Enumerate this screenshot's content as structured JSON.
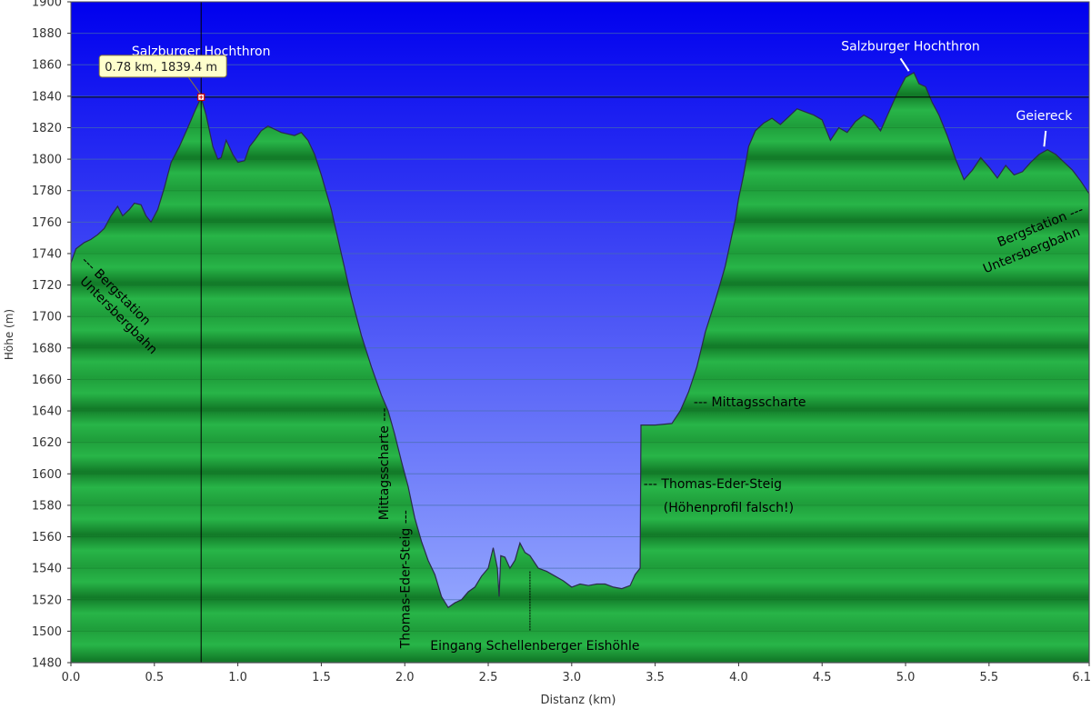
{
  "chart_data": {
    "type": "area",
    "xlabel": "Distanz  (km)",
    "ylabel": "Höhe (m)",
    "xlim": [
      0,
      6.1
    ],
    "ylim": [
      1480,
      1900
    ],
    "xticks": [
      0.0,
      0.5,
      1.0,
      1.5,
      2.0,
      2.5,
      3.0,
      3.5,
      4.0,
      4.5,
      5.0,
      5.5,
      6.1
    ],
    "xtick_labels": [
      "0.0",
      "0.5",
      "1.0",
      "1.5",
      "2.0",
      "2.5",
      "3.0",
      "3.5",
      "4.0",
      "4.5",
      "5.0",
      "5.5",
      "6.1"
    ],
    "yticks": [
      1480,
      1500,
      1520,
      1540,
      1560,
      1580,
      1600,
      1620,
      1640,
      1660,
      1680,
      1700,
      1720,
      1740,
      1760,
      1780,
      1800,
      1820,
      1840,
      1860,
      1880,
      1900
    ],
    "grid": true,
    "colors": {
      "sky_top": "#0000ee",
      "sky_bottom": "#a0b4ff",
      "terrain_light": "#22b14c",
      "terrain_dark": "#0f6b1f",
      "outline": "#2a2a4a",
      "tooltip_bg": "#ffffcc"
    },
    "profile": [
      [
        0.0,
        1734
      ],
      [
        0.03,
        1743
      ],
      [
        0.08,
        1747
      ],
      [
        0.12,
        1749
      ],
      [
        0.16,
        1752
      ],
      [
        0.2,
        1756
      ],
      [
        0.24,
        1764
      ],
      [
        0.28,
        1770
      ],
      [
        0.31,
        1764
      ],
      [
        0.35,
        1768
      ],
      [
        0.38,
        1772
      ],
      [
        0.42,
        1771
      ],
      [
        0.45,
        1764
      ],
      [
        0.48,
        1760
      ],
      [
        0.52,
        1768
      ],
      [
        0.56,
        1782
      ],
      [
        0.6,
        1798
      ],
      [
        0.65,
        1808
      ],
      [
        0.7,
        1820
      ],
      [
        0.74,
        1830
      ],
      [
        0.78,
        1839.4
      ],
      [
        0.81,
        1828
      ],
      [
        0.85,
        1808
      ],
      [
        0.88,
        1800
      ],
      [
        0.9,
        1801
      ],
      [
        0.93,
        1812
      ],
      [
        0.97,
        1803
      ],
      [
        1.0,
        1798
      ],
      [
        1.04,
        1799
      ],
      [
        1.07,
        1808
      ],
      [
        1.1,
        1812
      ],
      [
        1.14,
        1818
      ],
      [
        1.18,
        1821
      ],
      [
        1.22,
        1819
      ],
      [
        1.26,
        1817
      ],
      [
        1.3,
        1816
      ],
      [
        1.34,
        1815
      ],
      [
        1.38,
        1817
      ],
      [
        1.42,
        1812
      ],
      [
        1.46,
        1803
      ],
      [
        1.5,
        1790
      ],
      [
        1.56,
        1768
      ],
      [
        1.62,
        1740
      ],
      [
        1.68,
        1712
      ],
      [
        1.74,
        1688
      ],
      [
        1.8,
        1668
      ],
      [
        1.86,
        1650
      ],
      [
        1.9,
        1640
      ],
      [
        1.94,
        1625
      ],
      [
        1.98,
        1608
      ],
      [
        2.02,
        1592
      ],
      [
        2.06,
        1572
      ],
      [
        2.1,
        1557
      ],
      [
        2.14,
        1545
      ],
      [
        2.18,
        1536
      ],
      [
        2.22,
        1522
      ],
      [
        2.26,
        1515
      ],
      [
        2.3,
        1518
      ],
      [
        2.34,
        1520
      ],
      [
        2.38,
        1525
      ],
      [
        2.42,
        1528
      ],
      [
        2.46,
        1535
      ],
      [
        2.5,
        1540
      ],
      [
        2.53,
        1553
      ],
      [
        2.555,
        1540
      ],
      [
        2.565,
        1522
      ],
      [
        2.575,
        1548
      ],
      [
        2.6,
        1547
      ],
      [
        2.63,
        1540
      ],
      [
        2.66,
        1545
      ],
      [
        2.69,
        1556
      ],
      [
        2.72,
        1550
      ],
      [
        2.75,
        1548
      ],
      [
        2.8,
        1540
      ],
      [
        2.85,
        1538
      ],
      [
        2.9,
        1535
      ],
      [
        2.95,
        1532
      ],
      [
        3.0,
        1528
      ],
      [
        3.05,
        1530
      ],
      [
        3.1,
        1529
      ],
      [
        3.15,
        1530
      ],
      [
        3.2,
        1530
      ],
      [
        3.25,
        1528
      ],
      [
        3.3,
        1527
      ],
      [
        3.35,
        1529
      ],
      [
        3.38,
        1536
      ],
      [
        3.41,
        1540
      ],
      [
        3.415,
        1631
      ],
      [
        3.5,
        1631
      ],
      [
        3.6,
        1632
      ],
      [
        3.65,
        1640
      ],
      [
        3.7,
        1652
      ],
      [
        3.75,
        1668
      ],
      [
        3.8,
        1690
      ],
      [
        3.86,
        1710
      ],
      [
        3.92,
        1732
      ],
      [
        3.98,
        1762
      ],
      [
        4.0,
        1775
      ],
      [
        4.03,
        1790
      ],
      [
        4.06,
        1808
      ],
      [
        4.1,
        1818
      ],
      [
        4.15,
        1823
      ],
      [
        4.2,
        1826
      ],
      [
        4.25,
        1822
      ],
      [
        4.3,
        1827
      ],
      [
        4.35,
        1832
      ],
      [
        4.4,
        1830
      ],
      [
        4.45,
        1828
      ],
      [
        4.5,
        1825
      ],
      [
        4.55,
        1812
      ],
      [
        4.6,
        1820
      ],
      [
        4.65,
        1817
      ],
      [
        4.7,
        1824
      ],
      [
        4.75,
        1828
      ],
      [
        4.8,
        1825
      ],
      [
        4.85,
        1818
      ],
      [
        4.9,
        1830
      ],
      [
        4.95,
        1842
      ],
      [
        5.0,
        1852
      ],
      [
        5.05,
        1855
      ],
      [
        5.08,
        1848
      ],
      [
        5.12,
        1846
      ],
      [
        5.16,
        1836
      ],
      [
        5.2,
        1828
      ],
      [
        5.25,
        1815
      ],
      [
        5.3,
        1800
      ],
      [
        5.35,
        1787
      ],
      [
        5.4,
        1793
      ],
      [
        5.45,
        1801
      ],
      [
        5.5,
        1795
      ],
      [
        5.55,
        1788
      ],
      [
        5.6,
        1796
      ],
      [
        5.65,
        1790
      ],
      [
        5.7,
        1792
      ],
      [
        5.75,
        1798
      ],
      [
        5.8,
        1803
      ],
      [
        5.85,
        1806
      ],
      [
        5.9,
        1803
      ],
      [
        5.95,
        1798
      ],
      [
        6.0,
        1793
      ],
      [
        6.05,
        1786
      ],
      [
        6.1,
        1778
      ]
    ],
    "marker": {
      "x": 0.78,
      "y": 1839.4,
      "label": "0.78 km, 1839.4 m"
    },
    "annotations": [
      {
        "text": "Salzburger Hochthron",
        "x": 0.78,
        "y": 1866,
        "color": "#ffffff",
        "rotate": 0
      },
      {
        "text": "Salzburger Hochthron",
        "x": 5.03,
        "y": 1869,
        "color": "#ffffff",
        "rotate": 0,
        "leader": [
          [
            4.97,
            1864
          ],
          [
            5.02,
            1856
          ]
        ]
      },
      {
        "text": "Geiereck",
        "x": 5.83,
        "y": 1825,
        "color": "#ffffff",
        "rotate": 0,
        "leader": [
          [
            5.84,
            1818
          ],
          [
            5.83,
            1808
          ]
        ]
      },
      {
        "text": "--- Bergstation",
        "x": 0.06,
        "y": 1735,
        "color": "#000000",
        "rotate": 45,
        "anchor": "start"
      },
      {
        "text": "Untersbergbahn",
        "x": 0.05,
        "y": 1722,
        "color": "#000000",
        "rotate": 45,
        "anchor": "start"
      },
      {
        "text": "Bergstation ---",
        "x": 6.07,
        "y": 1766,
        "color": "#000000",
        "rotate": -22,
        "anchor": "end"
      },
      {
        "text": "Untersbergbahn",
        "x": 6.05,
        "y": 1752,
        "color": "#000000",
        "rotate": -22,
        "anchor": "end"
      },
      {
        "text": "Mittagsscharte ---",
        "x": 1.9,
        "y": 1642,
        "color": "#000000",
        "rotate": -90,
        "anchor": "end"
      },
      {
        "text": "Thomas-Eder-Steig ---",
        "x": 2.03,
        "y": 1577,
        "color": "#000000",
        "rotate": -90,
        "anchor": "end"
      },
      {
        "text": "--- Mittagsscharte",
        "x": 3.73,
        "y": 1643,
        "color": "#000000",
        "rotate": 0,
        "anchor": "start"
      },
      {
        "text": "--- Thomas-Eder-Steig",
        "x": 3.43,
        "y": 1591,
        "color": "#000000",
        "rotate": 0,
        "anchor": "start"
      },
      {
        "text": "(Höhenprofil falsch!)",
        "x": 3.55,
        "y": 1576,
        "color": "#000000",
        "rotate": 0,
        "anchor": "start"
      },
      {
        "text": "Eingang Schellenberger Eishöhle",
        "x": 2.78,
        "y": 1488,
        "color": "#000000",
        "rotate": 0,
        "anchor": "middle",
        "leader": [
          [
            2.75,
            1538
          ],
          [
            2.75,
            1500
          ]
        ]
      }
    ]
  }
}
